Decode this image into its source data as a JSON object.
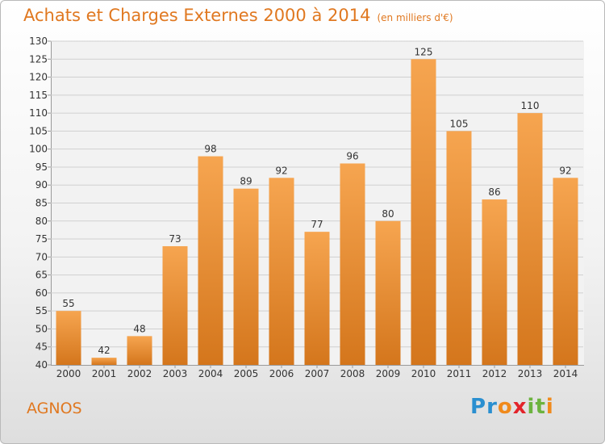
{
  "title": "Achats et Charges Externes 2000 à 2014",
  "subtitle": "(en milliers d'€)",
  "commune": "AGNOS",
  "brand": {
    "text": "Proxiti",
    "letters": [
      "P",
      "r",
      "o",
      "x",
      "i",
      "t",
      "i"
    ],
    "colors": [
      "#2a8fd0",
      "#2a8fd0",
      "#f08a1c",
      "#e3242b",
      "#6cb33f",
      "#6cb33f",
      "#f08a1c"
    ]
  },
  "colors": {
    "accent": "#e07820",
    "bar_light": "#f6a550",
    "bar_dark": "#d4761c"
  },
  "chart_data": {
    "type": "bar",
    "categories": [
      "2000",
      "2001",
      "2002",
      "2003",
      "2004",
      "2005",
      "2006",
      "2007",
      "2008",
      "2009",
      "2010",
      "2011",
      "2012",
      "2013",
      "2014"
    ],
    "values": [
      55,
      42,
      48,
      73,
      98,
      89,
      92,
      77,
      96,
      80,
      125,
      105,
      86,
      110,
      92
    ],
    "ylim": [
      40,
      130
    ],
    "yticks": [
      40,
      45,
      50,
      55,
      60,
      65,
      70,
      75,
      80,
      85,
      90,
      95,
      100,
      105,
      110,
      115,
      120,
      125,
      130
    ],
    "title": "Achats et Charges Externes 2000 à 2014",
    "grid": true
  }
}
